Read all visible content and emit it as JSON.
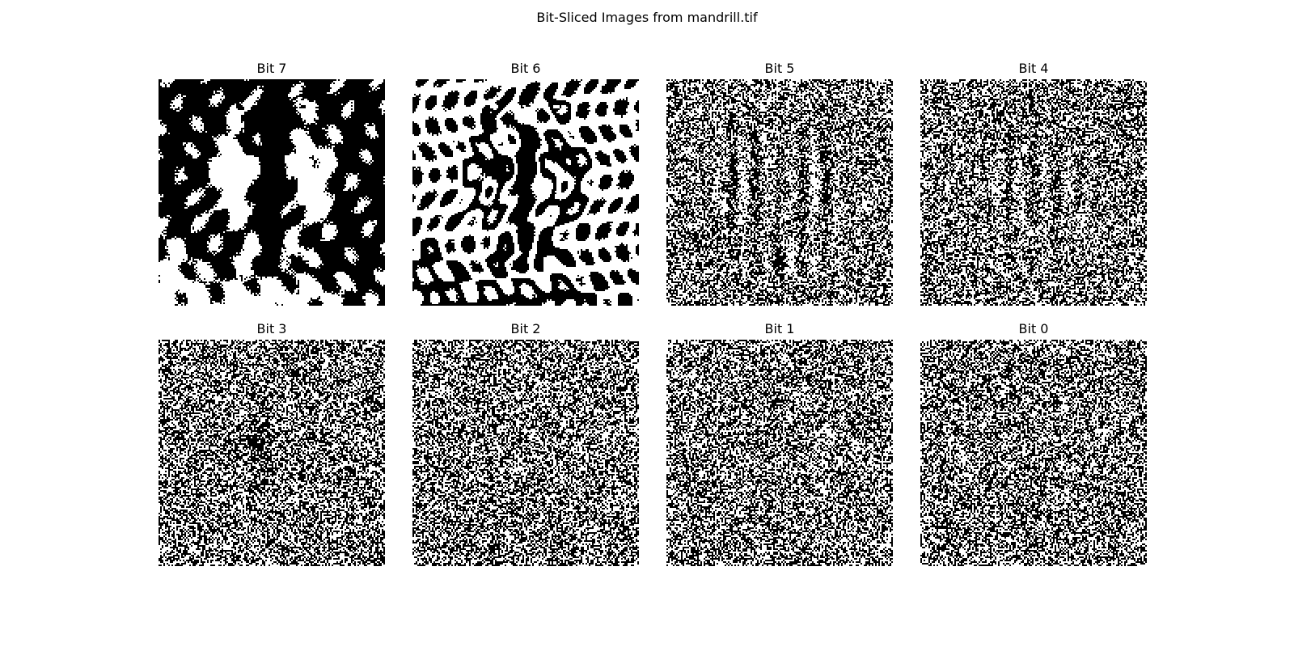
{
  "figure": {
    "title": "Bit-Sliced Images from mandrill.tif"
  },
  "panels": [
    {
      "label": "Bit 7",
      "bit": 7,
      "content": "mandrill face, high-contrast black and white"
    },
    {
      "label": "Bit 6",
      "bit": 6,
      "content": "mandrill face, inverted high-contrast black and white"
    },
    {
      "label": "Bit 5",
      "bit": 5,
      "content": "mandrill face outline over noisy texture"
    },
    {
      "label": "Bit 4",
      "bit": 4,
      "content": "faint mandrill nose ridges over noise"
    },
    {
      "label": "Bit 3",
      "bit": 3,
      "content": "mostly random noise with faint structure"
    },
    {
      "label": "Bit 2",
      "bit": 2,
      "content": "random noise"
    },
    {
      "label": "Bit 1",
      "bit": 1,
      "content": "random noise"
    },
    {
      "label": "Bit 0",
      "bit": 0,
      "content": "random noise"
    }
  ]
}
